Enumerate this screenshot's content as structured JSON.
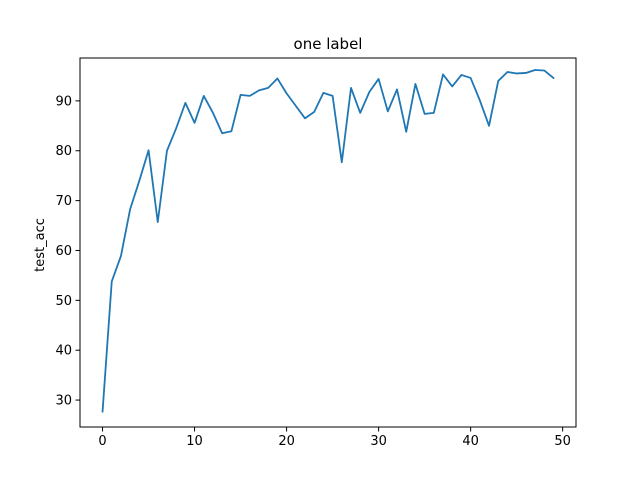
{
  "chart_data": {
    "type": "line",
    "title": "one label",
    "xlabel": "",
    "ylabel": "test_acc",
    "xlim": [
      -2.45,
      51.45
    ],
    "ylim": [
      24.6,
      98.6
    ],
    "grid": false,
    "legend": "none",
    "xticks": [
      0,
      10,
      20,
      30,
      40,
      50
    ],
    "yticks": [
      30,
      40,
      50,
      60,
      70,
      80,
      90
    ],
    "series": [
      {
        "color": "#1f77b4",
        "x": [
          0,
          1,
          2,
          3,
          4,
          5,
          6,
          7,
          8,
          9,
          10,
          11,
          12,
          13,
          14,
          15,
          16,
          17,
          18,
          19,
          20,
          21,
          22,
          23,
          24,
          25,
          26,
          27,
          28,
          29,
          30,
          31,
          32,
          33,
          34,
          35,
          36,
          37,
          38,
          39,
          40,
          41,
          42,
          43,
          44,
          45,
          46,
          47,
          48,
          49
        ],
        "values": [
          27.7,
          53.8,
          58.9,
          68.3,
          74.0,
          80.1,
          65.7,
          80.0,
          84.5,
          89.6,
          85.6,
          91.0,
          87.6,
          83.5,
          83.9,
          91.2,
          91.0,
          92.1,
          92.6,
          94.5,
          91.5,
          89.0,
          86.5,
          87.8,
          91.6,
          91.0,
          77.7,
          92.6,
          87.6,
          91.8,
          94.4,
          87.9,
          92.3,
          83.8,
          93.4,
          87.4,
          87.6,
          95.3,
          92.9,
          95.2,
          94.6,
          90.1,
          85.0,
          94.0,
          95.8,
          95.5,
          95.6,
          96.2,
          96.1,
          94.6
        ]
      }
    ]
  }
}
